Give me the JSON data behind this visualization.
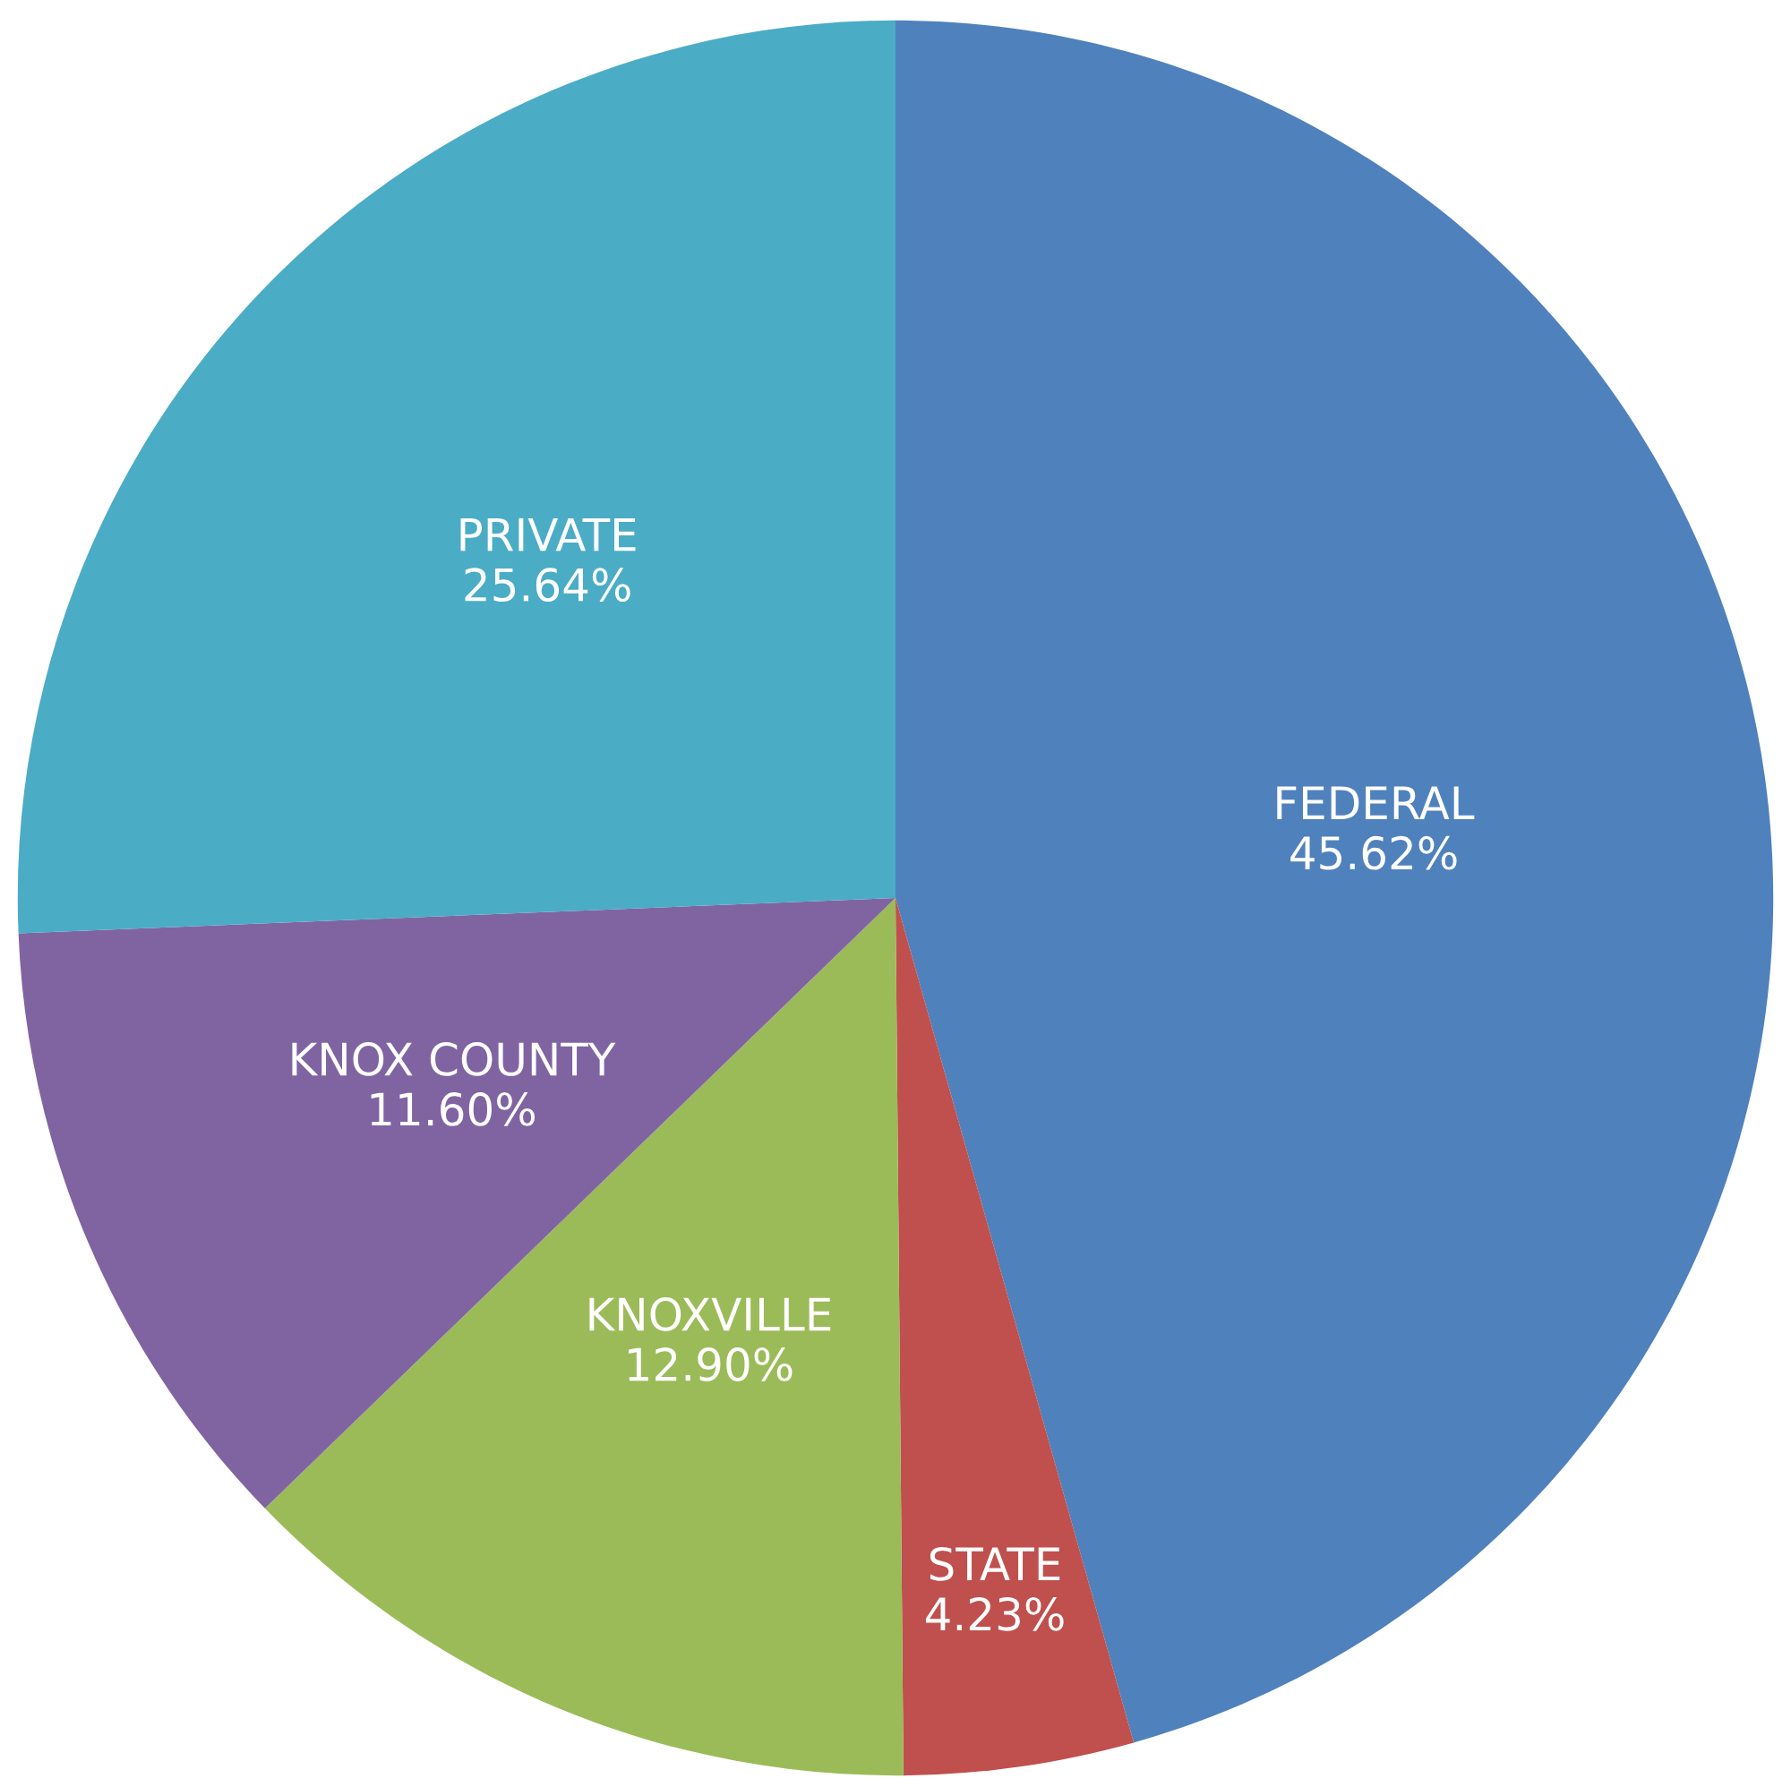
{
  "chart_data": {
    "type": "pie",
    "categories": [
      "FEDERAL",
      "STATE",
      "KNOXVILLE",
      "KNOX COUNTY",
      "PRIVATE"
    ],
    "values": [
      45.62,
      4.23,
      12.9,
      11.6,
      25.64
    ],
    "colors": [
      "#4f81bd",
      "#c0504d",
      "#9bbb59",
      "#8064a2",
      "#4bacc6"
    ],
    "value_labels": [
      "45.62%",
      "4.23%",
      "12.90%",
      "11.60%",
      "25.64%"
    ]
  }
}
